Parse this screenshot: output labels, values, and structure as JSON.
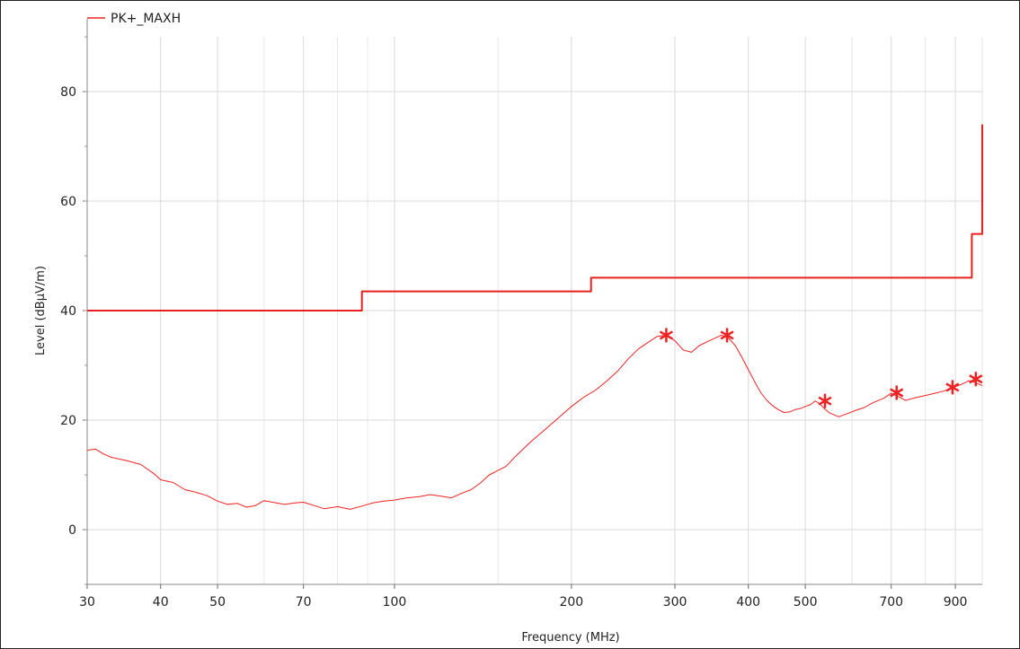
{
  "chart_data": {
    "type": "line",
    "xlabel": "Frequency (MHz)",
    "ylabel": "Level (dBµV/m)",
    "x_scale": "log",
    "xlim": [
      30,
      1000
    ],
    "ylim": [
      -10,
      90
    ],
    "x_ticks": [
      {
        "value": 30,
        "label": "30"
      },
      {
        "value": 40,
        "label": "40"
      },
      {
        "value": 50,
        "label": "50"
      },
      {
        "value": 70,
        "label": "70"
      },
      {
        "value": 100,
        "label": "100"
      },
      {
        "value": 200,
        "label": "200"
      },
      {
        "value": 300,
        "label": "300"
      },
      {
        "value": 400,
        "label": "400"
      },
      {
        "value": 500,
        "label": "500"
      },
      {
        "value": 700,
        "label": "700"
      },
      {
        "value": 900,
        "label": "900"
      }
    ],
    "x_minor": [
      60,
      80,
      90,
      150,
      600,
      800,
      1000
    ],
    "y_ticks": [
      0,
      20,
      40,
      60,
      80
    ],
    "grid": true,
    "legend": {
      "placement": "top-left",
      "entries": [
        "PK+_MAXH"
      ]
    },
    "colors": {
      "series": "#ee2222",
      "limit": "#e82020",
      "grid": "#d9d9d9"
    },
    "series": [
      {
        "name": "PK+_MAXH",
        "x": [
          30,
          31,
          32,
          33,
          35,
          37,
          39,
          40,
          42,
          44,
          46,
          48,
          50,
          52,
          54,
          56,
          58,
          60,
          62,
          65,
          68,
          70,
          73,
          76,
          80,
          84,
          88,
          92,
          96,
          100,
          105,
          110,
          115,
          120,
          125,
          130,
          135,
          140,
          145,
          150,
          155,
          160,
          170,
          180,
          190,
          200,
          210,
          220,
          230,
          240,
          250,
          260,
          270,
          280,
          290,
          300,
          310,
          320,
          330,
          340,
          350,
          360,
          370,
          380,
          390,
          400,
          410,
          420,
          430,
          440,
          450,
          460,
          470,
          480,
          490,
          500,
          510,
          520,
          530,
          540,
          550,
          570,
          590,
          610,
          630,
          650,
          680,
          700,
          720,
          740,
          770,
          800,
          830,
          860,
          890,
          920,
          950,
          970,
          1000
        ],
        "values": [
          14.5,
          14.7,
          13.8,
          13.2,
          12.6,
          11.9,
          10.2,
          9.1,
          8.6,
          7.3,
          6.8,
          6.2,
          5.2,
          4.6,
          4.8,
          4.1,
          4.4,
          5.3,
          5.0,
          4.6,
          4.9,
          5.0,
          4.4,
          3.8,
          4.2,
          3.7,
          4.3,
          4.9,
          5.2,
          5.4,
          5.8,
          6.0,
          6.4,
          6.1,
          5.8,
          6.6,
          7.3,
          8.5,
          10.0,
          10.8,
          11.6,
          13.2,
          15.9,
          18.2,
          20.4,
          22.5,
          24.2,
          25.5,
          27.2,
          29.0,
          31.2,
          33.0,
          34.2,
          35.3,
          35.5,
          34.5,
          32.8,
          32.4,
          33.6,
          34.3,
          34.9,
          35.5,
          35.0,
          33.6,
          31.5,
          29.2,
          27.0,
          25.0,
          23.6,
          22.6,
          21.9,
          21.4,
          21.5,
          21.9,
          22.1,
          22.5,
          22.8,
          23.5,
          22.9,
          22.0,
          21.3,
          20.6,
          21.2,
          21.8,
          22.3,
          23.1,
          24.0,
          24.9,
          24.3,
          23.6,
          24.1,
          24.5,
          24.9,
          25.3,
          25.9,
          26.5,
          27.2,
          26.9,
          26.3
        ]
      },
      {
        "name": "",
        "step": true,
        "x": [
          30,
          88,
          88,
          216,
          216,
          960,
          960,
          1000,
          1000
        ],
        "values": [
          40.0,
          40.0,
          43.5,
          43.5,
          46.0,
          46.0,
          54.0,
          54.0,
          74.0
        ]
      }
    ],
    "markers": [
      {
        "x": 290,
        "y": 35.5
      },
      {
        "x": 368,
        "y": 35.5
      },
      {
        "x": 540,
        "y": 23.5
      },
      {
        "x": 715,
        "y": 25.0
      },
      {
        "x": 890,
        "y": 26.0
      },
      {
        "x": 975,
        "y": 27.5
      }
    ]
  }
}
